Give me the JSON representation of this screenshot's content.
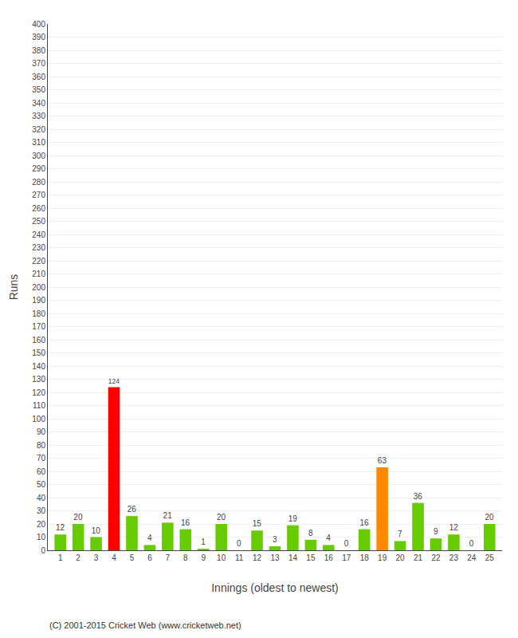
{
  "chart_data": {
    "type": "bar",
    "xlabel": "Innings (oldest to newest)",
    "ylabel": "Runs",
    "categories": [
      "1",
      "2",
      "3",
      "4",
      "5",
      "6",
      "7",
      "8",
      "9",
      "10",
      "11",
      "12",
      "13",
      "14",
      "15",
      "16",
      "17",
      "18",
      "19",
      "20",
      "21",
      "22",
      "23",
      "24",
      "25"
    ],
    "values": [
      12,
      20,
      10,
      124,
      26,
      4,
      21,
      16,
      1,
      20,
      0,
      15,
      3,
      19,
      8,
      4,
      0,
      16,
      63,
      7,
      36,
      9,
      12,
      0,
      20
    ],
    "colors": [
      "#66cc00",
      "#66cc00",
      "#66cc00",
      "#ff0000",
      "#66cc00",
      "#66cc00",
      "#66cc00",
      "#66cc00",
      "#66cc00",
      "#66cc00",
      "#66cc00",
      "#66cc00",
      "#66cc00",
      "#66cc00",
      "#66cc00",
      "#66cc00",
      "#66cc00",
      "#66cc00",
      "#ff8800",
      "#66cc00",
      "#66cc00",
      "#66cc00",
      "#66cc00",
      "#66cc00",
      "#66cc00"
    ],
    "ylim": [
      0,
      400
    ],
    "yticks": [
      0,
      10,
      20,
      30,
      40,
      50,
      60,
      70,
      80,
      90,
      100,
      110,
      120,
      130,
      140,
      150,
      160,
      170,
      180,
      190,
      200,
      210,
      220,
      230,
      240,
      250,
      260,
      270,
      280,
      290,
      300,
      310,
      320,
      330,
      340,
      350,
      360,
      370,
      380,
      390,
      400
    ],
    "grid": true,
    "data_labels": true,
    "annotations": [
      "(C) 2001-2015 Cricket Web (www.cricketweb.net)"
    ]
  }
}
